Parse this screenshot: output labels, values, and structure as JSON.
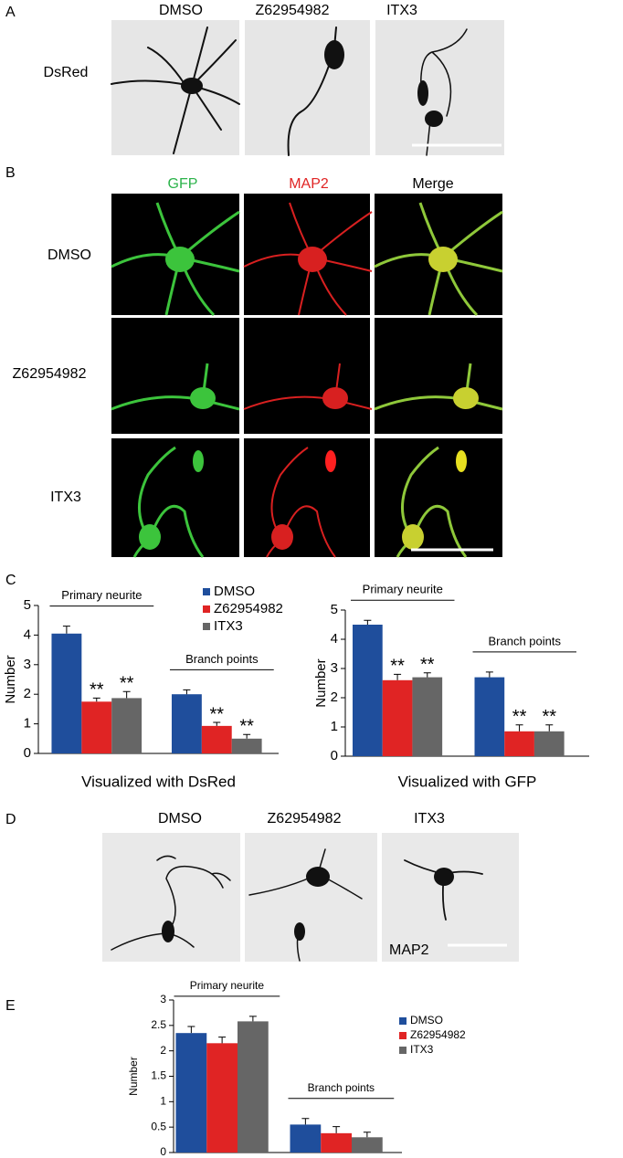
{
  "panel_a": {
    "label": "A",
    "columns": [
      "DMSO",
      "Z62954982",
      "ITX3"
    ],
    "row": "DsRed"
  },
  "panel_b": {
    "label": "B",
    "columns": [
      "GFP",
      "MAP2",
      "Merge"
    ],
    "rows": [
      "DMSO",
      "Z62954982",
      "ITX3"
    ]
  },
  "panel_c": {
    "label": "C"
  },
  "panel_d": {
    "label": "D",
    "columns": [
      "DMSO",
      "Z62954982",
      "ITX3"
    ],
    "inset": "MAP2"
  },
  "panel_e": {
    "label": "E"
  },
  "chart_data": [
    {
      "type": "bar",
      "ylabel": "Number",
      "xlabel": "Visualized with DsRed",
      "categories": [
        "Primary neurite",
        "Branch points"
      ],
      "ylim": [
        0,
        5
      ],
      "yticks": [
        0,
        1,
        2,
        3,
        4,
        5
      ],
      "legend": "top-right",
      "series": [
        {
          "name": "DMSO",
          "color": "#1f4e9c",
          "values": [
            4.05,
            2.0
          ],
          "errors": [
            0.25,
            0.15
          ]
        },
        {
          "name": "Z62954982",
          "color": "#e02424",
          "values": [
            1.75,
            0.93
          ],
          "errors": [
            0.12,
            0.12
          ],
          "significance": [
            "**",
            "**"
          ]
        },
        {
          "name": "ITX3",
          "color": "#666666",
          "values": [
            1.87,
            0.5
          ],
          "errors": [
            0.22,
            0.14
          ],
          "significance": [
            "**",
            "**"
          ]
        }
      ]
    },
    {
      "type": "bar",
      "ylabel": "Number",
      "xlabel": "Visualized with GFP",
      "categories": [
        "Primary neurite",
        "Branch points"
      ],
      "ylim": [
        0,
        5
      ],
      "yticks": [
        0,
        1,
        2,
        3,
        4,
        5
      ],
      "series": [
        {
          "color": "#1f4e9c",
          "values": [
            4.5,
            2.7
          ],
          "errors": [
            0.15,
            0.18
          ]
        },
        {
          "color": "#e02424",
          "values": [
            2.6,
            0.85
          ],
          "errors": [
            0.2,
            0.22
          ],
          "significance": [
            "**",
            "**"
          ]
        },
        {
          "color": "#666666",
          "values": [
            2.7,
            0.85
          ],
          "errors": [
            0.15,
            0.22
          ],
          "significance": [
            "**",
            "**"
          ]
        }
      ]
    },
    {
      "type": "bar",
      "ylabel": "Number",
      "categories": [
        "Primary neurite",
        "Branch points"
      ],
      "ylim": [
        0,
        3
      ],
      "yticks": [
        0,
        0.5,
        1,
        1.5,
        2,
        2.5,
        3
      ],
      "legend": "top-right",
      "series": [
        {
          "name": "DMSO",
          "color": "#1f4e9c",
          "values": [
            2.35,
            0.55
          ],
          "errors": [
            0.13,
            0.12
          ]
        },
        {
          "name": "Z62954982",
          "color": "#e02424",
          "values": [
            2.15,
            0.38
          ],
          "errors": [
            0.12,
            0.13
          ]
        },
        {
          "name": "ITX3",
          "color": "#666666",
          "values": [
            2.58,
            0.3
          ],
          "errors": [
            0.1,
            0.1
          ]
        }
      ]
    }
  ]
}
